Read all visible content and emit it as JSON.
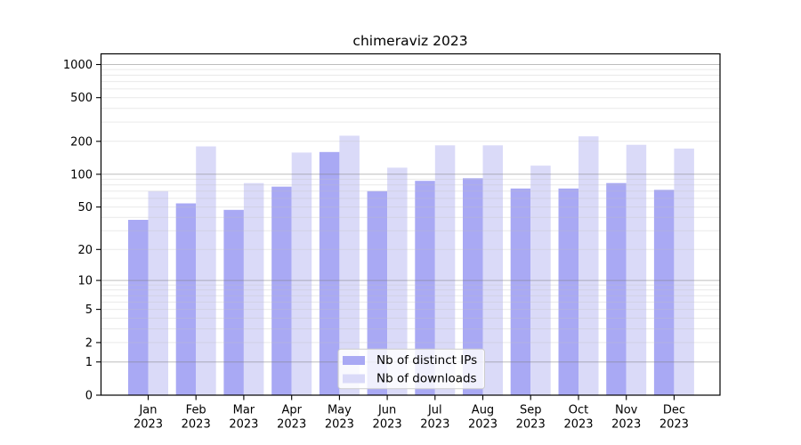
{
  "chart_data": {
    "type": "bar",
    "title": "chimeraviz 2023",
    "categories": [
      "Jan",
      "Feb",
      "Mar",
      "Apr",
      "May",
      "Jun",
      "Jul",
      "Aug",
      "Sep",
      "Oct",
      "Nov",
      "Dec"
    ],
    "year": "2023",
    "x_tick_labels": [
      "Jan 2023",
      "Feb 2023",
      "Mar 2023",
      "Apr 2023",
      "May 2023",
      "Jun 2023",
      "Jul 2023",
      "Aug 2023",
      "Sep 2023",
      "Oct 2023",
      "Nov 2023",
      "Dec 2023"
    ],
    "series": [
      {
        "name": "Nb of distinct IPs",
        "color": "#a9a9f4",
        "values": [
          38,
          54,
          47,
          77,
          160,
          70,
          87,
          92,
          74,
          74,
          83,
          72
        ]
      },
      {
        "name": "Nb of downloads",
        "color": "#dadaf8",
        "values": [
          70,
          180,
          83,
          158,
          225,
          115,
          184,
          184,
          120,
          222,
          186,
          172
        ]
      }
    ],
    "yscale": "log1p",
    "ylim": [
      0,
      1250
    ],
    "yticks": [
      0,
      1,
      2,
      5,
      10,
      20,
      50,
      100,
      200,
      500,
      1000
    ],
    "grid": {
      "major": true,
      "minor": true,
      "orientation": "horizontal",
      "drawn_over_bars": true
    },
    "legend_position": "lower center"
  },
  "style": {
    "background": "#ffffff",
    "axis_color": "#000000",
    "text_color": "#000000",
    "grid_major_color": "#808080",
    "grid_major_opacity": 0.52,
    "grid_minor_color": "#bfbfbf",
    "grid_minor_opacity": 0.35,
    "legend_border_color": "#cccccc",
    "legend_bg_color": "#ffffff"
  }
}
